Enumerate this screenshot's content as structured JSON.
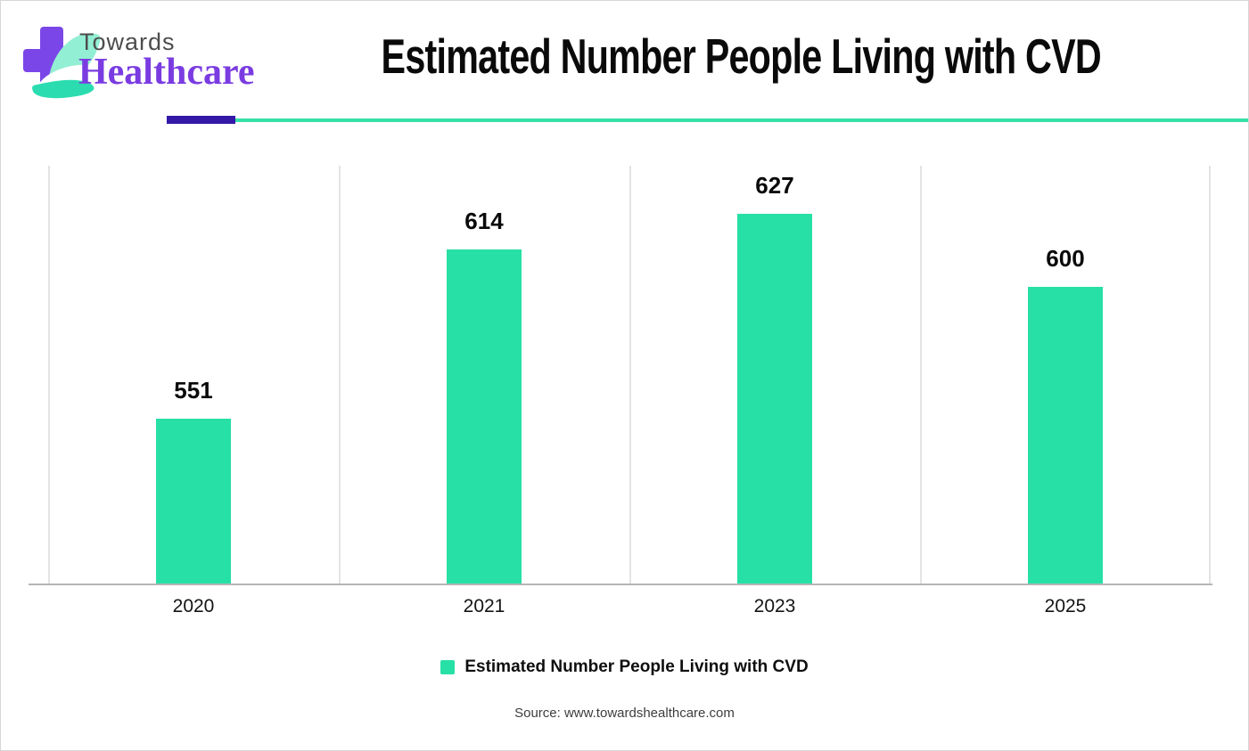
{
  "page": {
    "background": "#ffffff",
    "border_color": "#d6d6d6"
  },
  "header": {
    "logo": {
      "line1": "Towards",
      "line2": "Healthcare",
      "cross_color": "#7b46e8",
      "leaf_light_color": "#93efd3",
      "leaf_dark_color": "#2bdcb0",
      "line1_color": "#4d4d4d",
      "line2_color": "#7a3ce1"
    },
    "title": "Estimated Number People Living with CVD",
    "divider": {
      "accent_color": "#3418a8",
      "line_color": "#35dfa8"
    }
  },
  "chart_data": {
    "type": "bar",
    "title": "Estimated Number People Living with CVD",
    "categories": [
      "2020",
      "2021",
      "2023",
      "2025"
    ],
    "values": [
      551,
      614,
      627,
      600
    ],
    "series_name": "Estimated Number People Living with CVD",
    "bar_color": "#27e0a5",
    "value_labels_shown": true,
    "xlabel": "",
    "ylabel": "",
    "ylim": [
      490,
      645
    ],
    "y_axis_shown": false,
    "grid": "vertical-section-dividers",
    "gridline_color": "#e4e4e4",
    "axis_line_color": "#b5b5b5",
    "legend_position": "bottom"
  },
  "legend": {
    "swatch_color": "#27e0a5",
    "label": "Estimated Number People Living with CVD"
  },
  "source": {
    "text": "Source: www.towardshealthcare.com"
  }
}
